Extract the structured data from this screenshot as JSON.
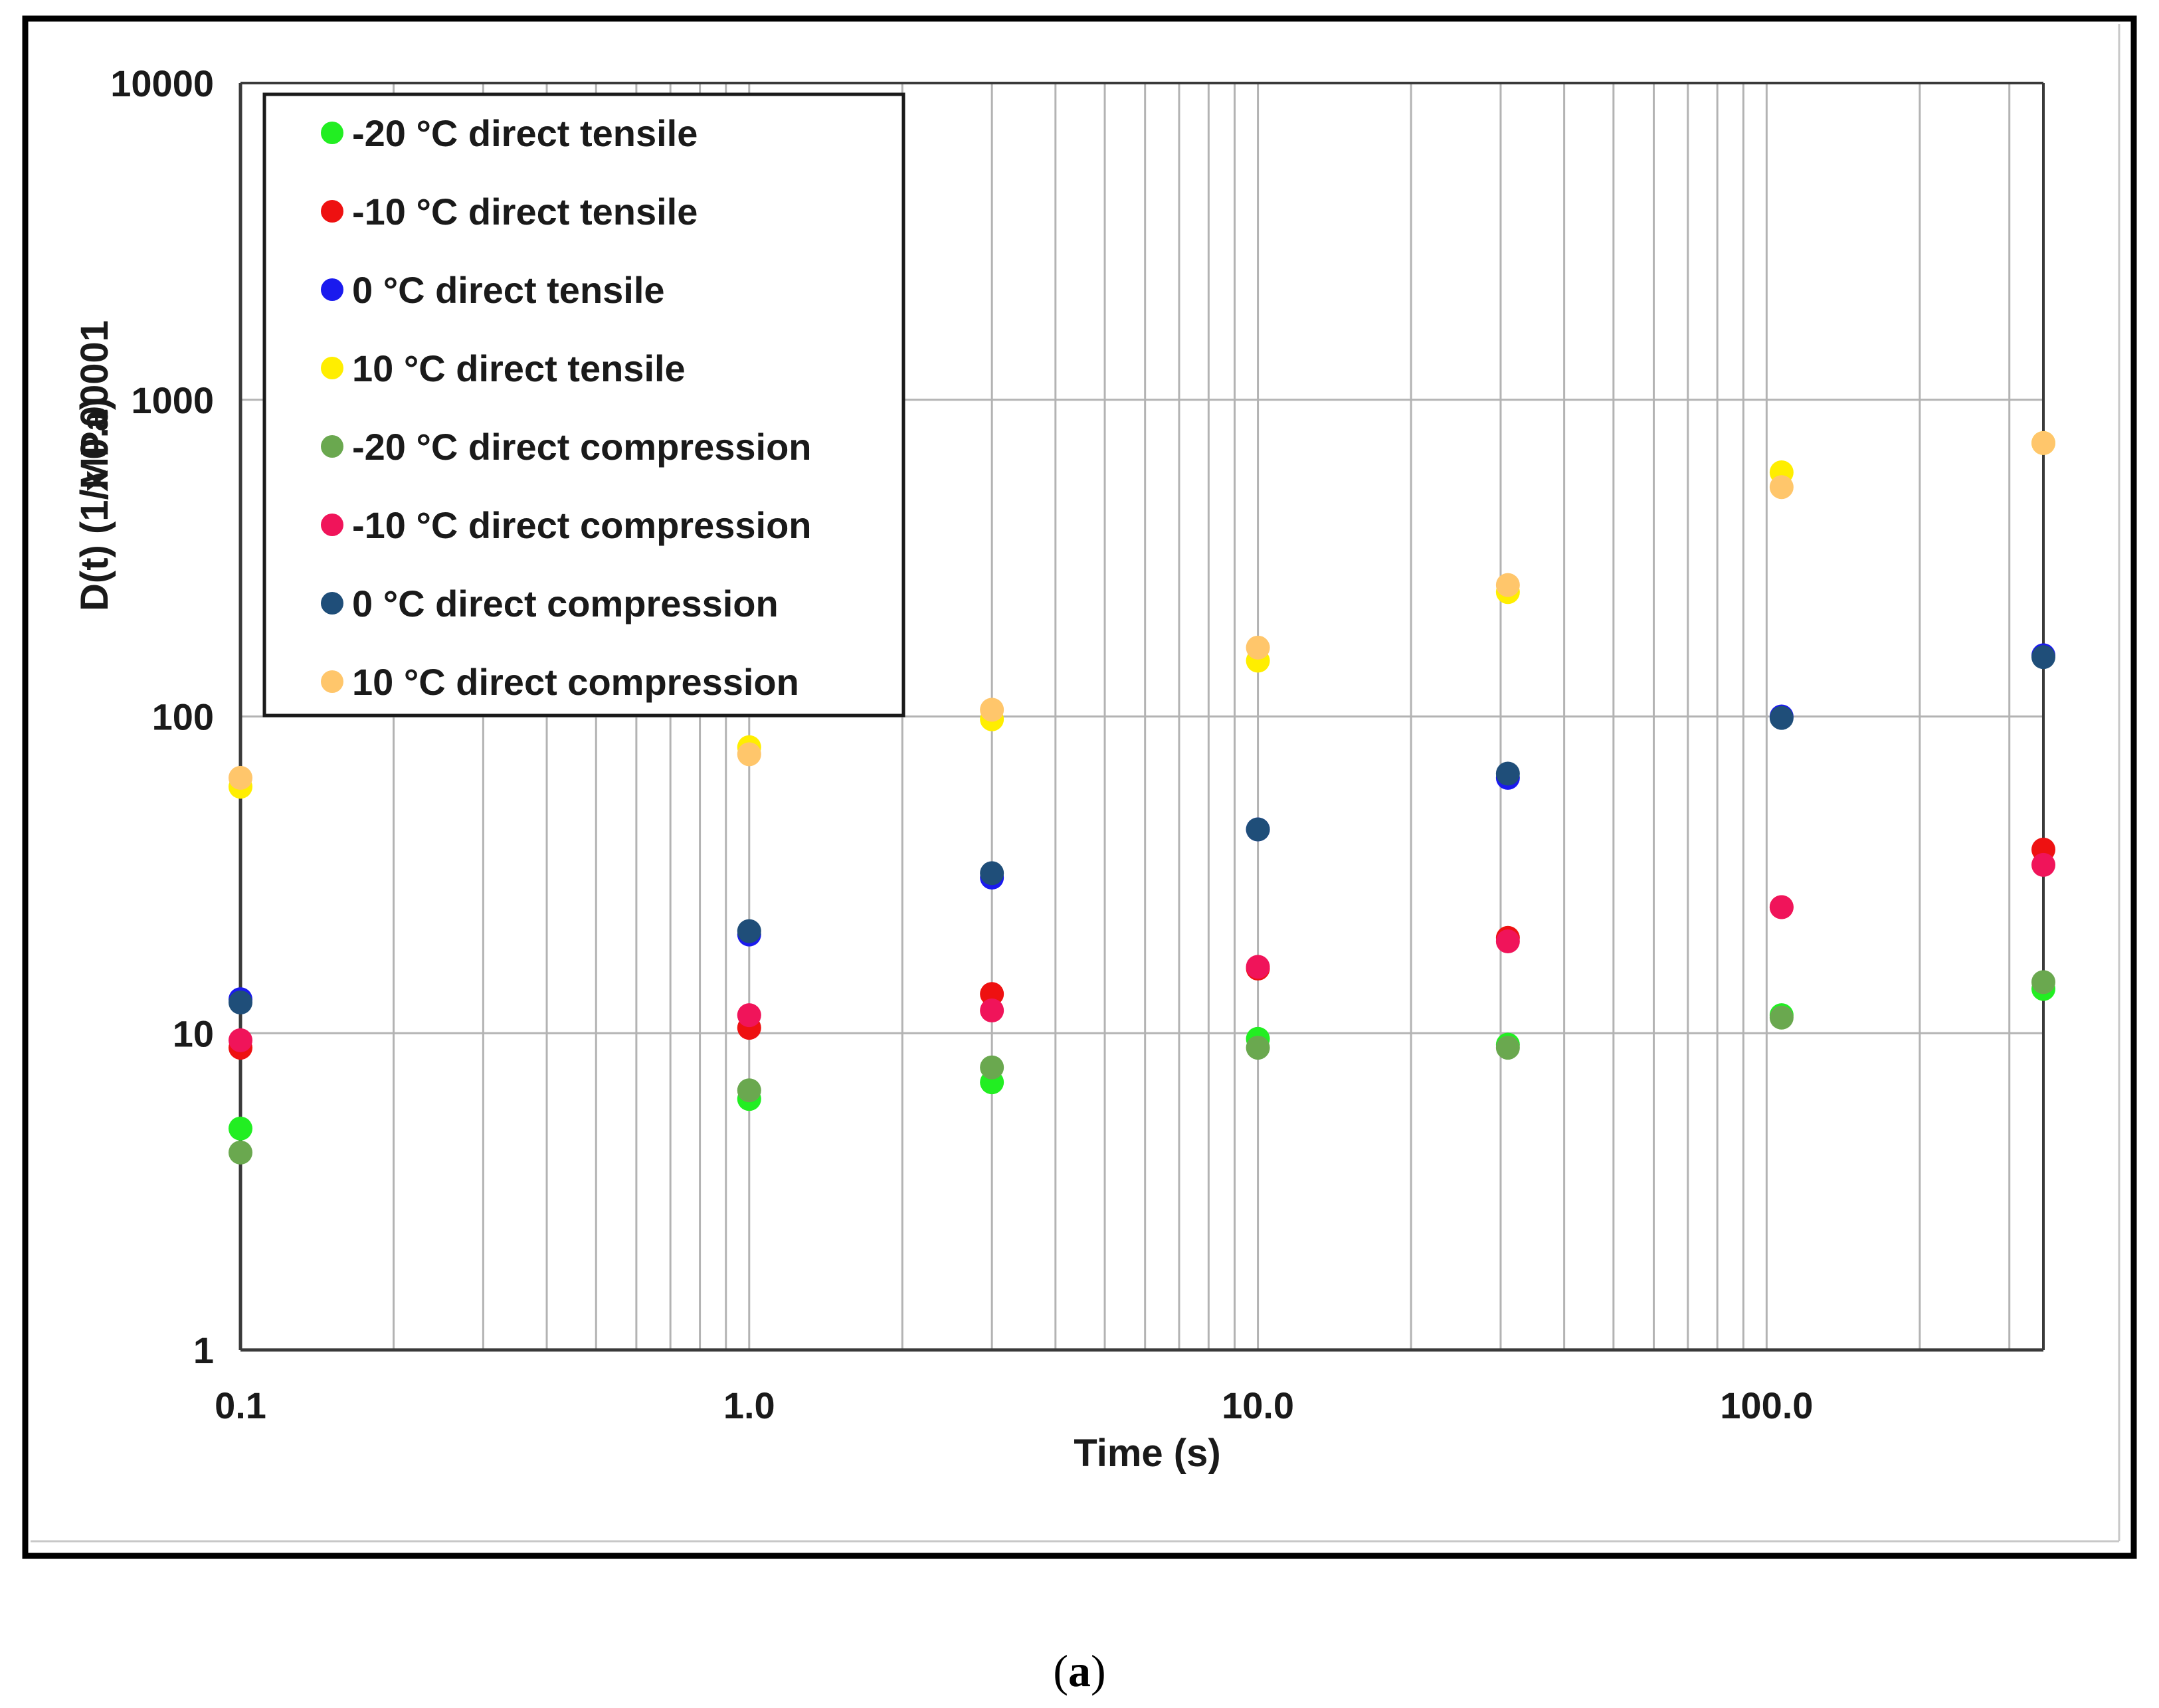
{
  "caption": {
    "open": "(",
    "letter": "a",
    "close": ")"
  },
  "chart_data": {
    "type": "scatter",
    "title": "",
    "xlabel": "Time (s)",
    "ylabel": "D(t) (1/MPa)",
    "ylabel_multiplier": "x 0.00001",
    "xscale": "log",
    "yscale": "log",
    "xlim": [
      0.1,
      350
    ],
    "ylim": [
      1,
      10000
    ],
    "grid": true,
    "legend_position": "top-left",
    "x_tick_labels": [
      {
        "value": 0.1,
        "label": "0.1"
      },
      {
        "value": 1,
        "label": "1.0"
      },
      {
        "value": 10,
        "label": "10.0"
      },
      {
        "value": 100,
        "label": "100.0"
      }
    ],
    "y_tick_labels": [
      {
        "value": 1,
        "label": "1"
      },
      {
        "value": 10,
        "label": "10"
      },
      {
        "value": 100,
        "label": "100"
      },
      {
        "value": 1000,
        "label": "1000"
      },
      {
        "value": 10000,
        "label": "10000"
      }
    ],
    "series": [
      {
        "name": "-20 °C direct tensile",
        "color": "#22ee22",
        "x": [
          0.1,
          1,
          3,
          10,
          31,
          107,
          350
        ],
        "y": [
          5,
          6.2,
          7,
          9.6,
          9.2,
          11.4,
          13.8
        ]
      },
      {
        "name": "-10 °C direct tensile",
        "color": "#ee1111",
        "x": [
          0.1,
          1,
          3,
          10,
          31,
          107,
          350
        ],
        "y": [
          9,
          10.4,
          13.3,
          16,
          20,
          25,
          38
        ]
      },
      {
        "name": "0 °C direct tensile",
        "color": "#1a1aee",
        "x": [
          0.1,
          1,
          3,
          10,
          31,
          107,
          350
        ],
        "y": [
          12.8,
          20.5,
          31,
          44,
          64,
          100,
          156
        ]
      },
      {
        "name": "10 °C direct tensile",
        "color": "#ffee00",
        "x": [
          0.1,
          1,
          3,
          10,
          31,
          107,
          350
        ],
        "y": [
          60,
          80,
          98,
          150,
          247,
          590,
          730
        ]
      },
      {
        "name": "-20 °C direct compression",
        "color": "#6aa84f",
        "x": [
          0.1,
          1,
          3,
          10,
          31,
          107,
          350
        ],
        "y": [
          4.2,
          6.6,
          7.8,
          9,
          9,
          11.2,
          14.5
        ]
      },
      {
        "name": "-10 °C direct compression",
        "color": "#f0145a",
        "x": [
          0.1,
          1,
          3,
          10,
          31,
          107,
          350
        ],
        "y": [
          9.5,
          11.4,
          11.8,
          16.2,
          19.5,
          25,
          34
        ]
      },
      {
        "name": "0 °C direct compression",
        "color": "#1f4e79",
        "x": [
          0.1,
          1,
          3,
          10,
          31,
          107,
          350
        ],
        "y": [
          12.5,
          21,
          32,
          44,
          66,
          99,
          154
        ]
      },
      {
        "name": "10 °C direct compression",
        "color": "#ffc66b",
        "x": [
          0.1,
          1,
          3,
          10,
          31,
          107,
          350
        ],
        "y": [
          64,
          76,
          105,
          165,
          260,
          530,
          730
        ]
      }
    ]
  }
}
